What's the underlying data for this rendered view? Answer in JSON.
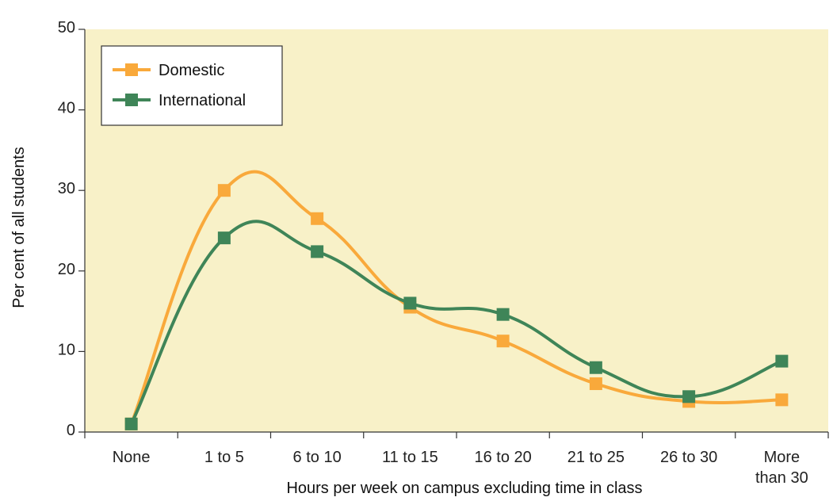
{
  "chart_data": {
    "type": "line",
    "xlabel": "Hours per week on campus excluding time in class",
    "ylabel": "Per cent of all students",
    "categories": [
      [
        "None"
      ],
      [
        "1 to 5"
      ],
      [
        "6 to 10"
      ],
      [
        "11 to 15"
      ],
      [
        "16 to 20"
      ],
      [
        "21 to 25"
      ],
      [
        "26 to 30"
      ],
      [
        "More",
        "than 30"
      ]
    ],
    "ylim": [
      0,
      50
    ],
    "yticks": [
      0,
      10,
      20,
      30,
      40,
      50
    ],
    "ytick_labels": [
      "0",
      "10",
      "20",
      "30",
      "40",
      "50"
    ],
    "grid": false,
    "legend_position": "top-left",
    "plot_background": "#f8f1c8",
    "series": [
      {
        "name": "Domestic",
        "color": "#f9a93b",
        "values": [
          1,
          30,
          26.5,
          15.5,
          11.3,
          6,
          3.8,
          4
        ]
      },
      {
        "name": "International",
        "color": "#3f8558",
        "values": [
          1,
          24.1,
          22.4,
          16,
          14.6,
          8,
          4.4,
          8.8
        ]
      }
    ]
  }
}
